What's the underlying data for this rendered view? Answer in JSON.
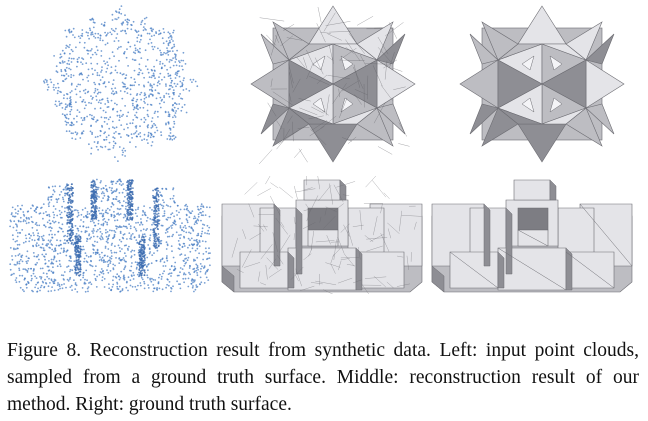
{
  "figure": {
    "rows": [
      {
        "name": "star-polyhedron",
        "panels": [
          {
            "name": "input-point-cloud",
            "style": "points"
          },
          {
            "name": "our-reconstruction",
            "style": "wireframe-mesh"
          },
          {
            "name": "ground-truth-surface",
            "style": "flat-shaded"
          }
        ]
      },
      {
        "name": "stepped-block-scene",
        "panels": [
          {
            "name": "input-point-cloud",
            "style": "points"
          },
          {
            "name": "our-reconstruction",
            "style": "wireframe-mesh"
          },
          {
            "name": "ground-truth-surface",
            "style": "flat-shaded"
          }
        ]
      }
    ],
    "colors": {
      "points": "#4a7fc4",
      "light": "#e4e4e8",
      "mid": "#bdbdc2",
      "dark": "#8e8e94",
      "edge": "#6c6c72"
    }
  },
  "caption": {
    "text": "Figure 8. Reconstruction result from synthetic data.  Left: input point clouds, sampled from a ground truth surface. Middle: reconstruction result of our method. Right: ground truth surface."
  }
}
